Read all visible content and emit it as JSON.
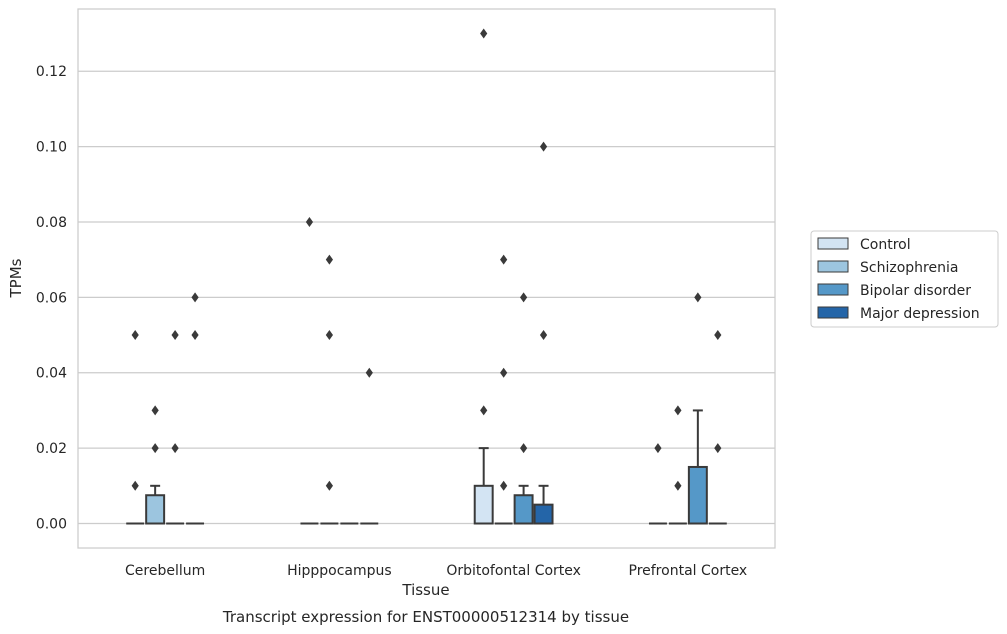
{
  "caption": "Transcript expression for ENST00000512314 by tissue",
  "chart_data": {
    "type": "box",
    "xlabel": "Tissue",
    "ylabel": "TPMs",
    "ylim": [
      -0.0065,
      0.1365
    ],
    "yticks": [
      "0.00",
      "0.02",
      "0.04",
      "0.06",
      "0.08",
      "0.10",
      "0.12"
    ],
    "ytick_values": [
      0,
      0.02,
      0.04,
      0.06,
      0.08,
      0.1,
      0.12
    ],
    "grid": "horizontal",
    "legend_position": "right",
    "categories": [
      "Cerebellum",
      "Hipppocampus",
      "Orbitofontal Cortex",
      "Prefrontal Cortex"
    ],
    "series": [
      {
        "name": "Control",
        "color": "#d3e4f3",
        "boxes": [
          {
            "q1": 0,
            "median": 0,
            "q3": 0,
            "whisker_low": 0,
            "whisker_high": 0,
            "outliers": [
              0.01,
              0.05
            ]
          },
          {
            "q1": 0,
            "median": 0,
            "q3": 0,
            "whisker_low": 0,
            "whisker_high": 0,
            "outliers": [
              0.08
            ]
          },
          {
            "q1": 0,
            "median": 0,
            "q3": 0.01,
            "whisker_low": 0,
            "whisker_high": 0.02,
            "outliers": [
              0.03,
              0.13
            ]
          },
          {
            "q1": 0,
            "median": 0,
            "q3": 0,
            "whisker_low": 0,
            "whisker_high": 0,
            "outliers": [
              0.02
            ]
          }
        ]
      },
      {
        "name": "Schizophrenia",
        "color": "#9cc5df",
        "boxes": [
          {
            "q1": 0,
            "median": 0,
            "q3": 0.0075,
            "whisker_low": 0,
            "whisker_high": 0.01,
            "outliers": [
              0.02,
              0.03
            ]
          },
          {
            "q1": 0,
            "median": 0,
            "q3": 0,
            "whisker_low": 0,
            "whisker_high": 0,
            "outliers": [
              0.01,
              0.05,
              0.07
            ]
          },
          {
            "q1": 0,
            "median": 0,
            "q3": 0,
            "whisker_low": 0,
            "whisker_high": 0,
            "outliers": [
              0.01,
              0.04,
              0.07
            ]
          },
          {
            "q1": 0,
            "median": 0,
            "q3": 0,
            "whisker_low": 0,
            "whisker_high": 0,
            "outliers": [
              0.01,
              0.03
            ]
          }
        ]
      },
      {
        "name": "Bipolar disorder",
        "color": "#5598c8",
        "boxes": [
          {
            "q1": 0,
            "median": 0,
            "q3": 0,
            "whisker_low": 0,
            "whisker_high": 0,
            "outliers": [
              0.02,
              0.05
            ]
          },
          {
            "q1": 0,
            "median": 0,
            "q3": 0,
            "whisker_low": 0,
            "whisker_high": 0,
            "outliers": []
          },
          {
            "q1": 0,
            "median": 0,
            "q3": 0.0075,
            "whisker_low": 0,
            "whisker_high": 0.01,
            "outliers": [
              0.02,
              0.06
            ]
          },
          {
            "q1": 0,
            "median": 0,
            "q3": 0.015,
            "whisker_low": 0,
            "whisker_high": 0.03,
            "outliers": [
              0.06
            ]
          }
        ]
      },
      {
        "name": "Major depression",
        "color": "#2465a8",
        "boxes": [
          {
            "q1": 0,
            "median": 0,
            "q3": 0,
            "whisker_low": 0,
            "whisker_high": 0,
            "outliers": [
              0.05,
              0.06
            ]
          },
          {
            "q1": 0,
            "median": 0,
            "q3": 0,
            "whisker_low": 0,
            "whisker_high": 0,
            "outliers": [
              0.04
            ]
          },
          {
            "q1": 0,
            "median": 0,
            "q3": 0.005,
            "whisker_low": 0,
            "whisker_high": 0.01,
            "outliers": [
              0.05,
              0.1
            ]
          },
          {
            "q1": 0,
            "median": 0,
            "q3": 0,
            "whisker_low": 0,
            "whisker_high": 0,
            "outliers": [
              0.02,
              0.05
            ]
          }
        ]
      }
    ]
  }
}
